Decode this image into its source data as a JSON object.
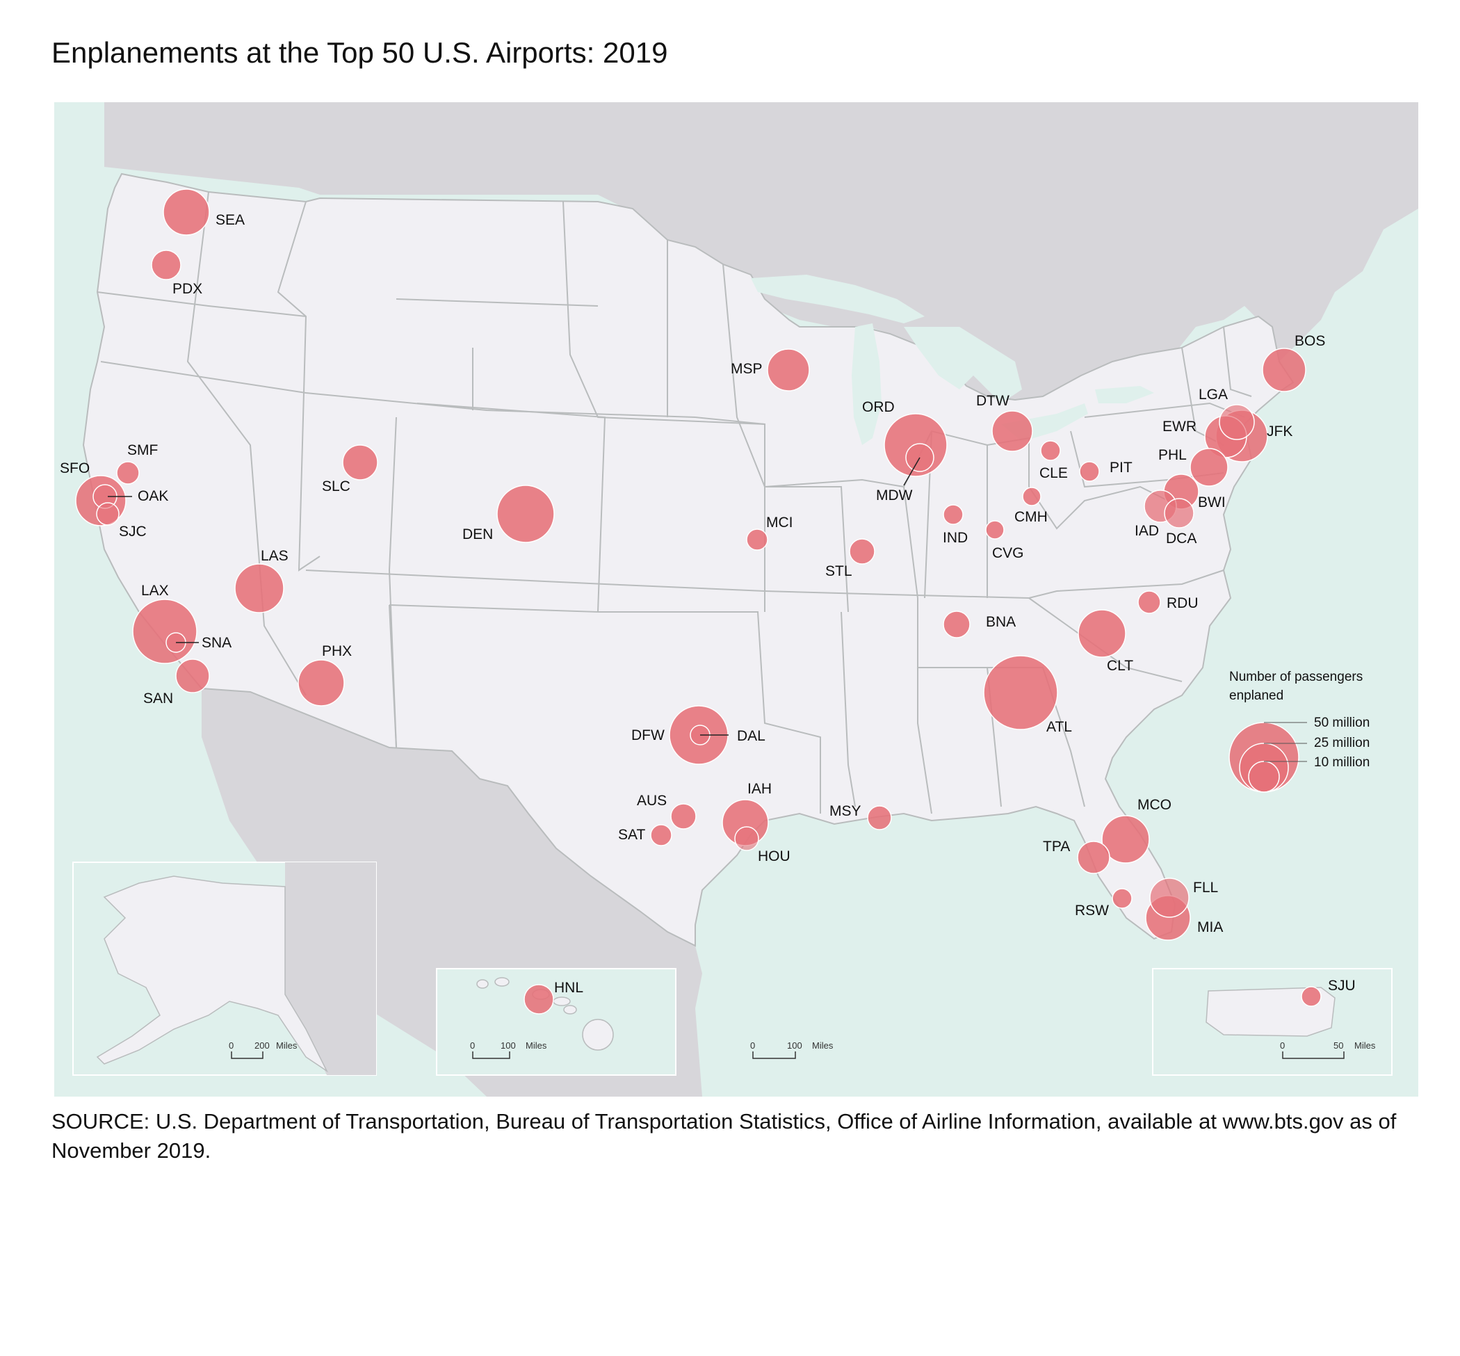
{
  "title": "Enplanements at the Top 50 U.S. Airports: 2019",
  "source": "SOURCE: U.S. Department of Transportation, Bureau of Transportation Statistics, Office of Airline Information, available at www.bts.gov as of November 2019.",
  "colors": {
    "water": "#dff0ec",
    "us_land": "#f1f0f4",
    "foreign_land": "#d7d6da",
    "borders": "#b9bcbd",
    "circle_fill": "#e67179",
    "circle_stroke": "#ffffff"
  },
  "legend": {
    "title_line1": "Number of passengers",
    "title_line2": "enplaned",
    "items": [
      {
        "label": "50 million"
      },
      {
        "label": "25 million"
      },
      {
        "label": "10 million"
      }
    ]
  },
  "scalebars": {
    "alaska": {
      "zero": "0",
      "value": "200",
      "unit": "Miles"
    },
    "hawaii": {
      "zero": "0",
      "value": "100",
      "unit": "Miles"
    },
    "mainland": {
      "zero": "0",
      "value": "100",
      "unit": "Miles"
    },
    "puerto_rico": {
      "zero": "0",
      "value": "50",
      "unit": "Miles"
    }
  },
  "airports": [
    {
      "code": "ATL"
    },
    {
      "code": "LAX"
    },
    {
      "code": "ORD"
    },
    {
      "code": "DFW"
    },
    {
      "code": "DEN"
    },
    {
      "code": "JFK"
    },
    {
      "code": "SFO"
    },
    {
      "code": "LAS"
    },
    {
      "code": "SEA"
    },
    {
      "code": "CLT"
    },
    {
      "code": "MCO"
    },
    {
      "code": "EWR"
    },
    {
      "code": "PHX"
    },
    {
      "code": "MIA"
    },
    {
      "code": "IAH"
    },
    {
      "code": "BOS"
    },
    {
      "code": "MSP"
    },
    {
      "code": "FLL"
    },
    {
      "code": "DTW"
    },
    {
      "code": "PHL"
    },
    {
      "code": "LGA"
    },
    {
      "code": "BWI"
    },
    {
      "code": "SLC"
    },
    {
      "code": "SAN"
    },
    {
      "code": "IAD"
    },
    {
      "code": "DCA"
    },
    {
      "code": "MDW"
    },
    {
      "code": "TPA"
    },
    {
      "code": "HNL"
    },
    {
      "code": "PDX"
    },
    {
      "code": "DAL"
    },
    {
      "code": "STL"
    },
    {
      "code": "BNA"
    },
    {
      "code": "AUS"
    },
    {
      "code": "HOU"
    },
    {
      "code": "OAK"
    },
    {
      "code": "MSY"
    },
    {
      "code": "RDU"
    },
    {
      "code": "SJC"
    },
    {
      "code": "SMF"
    },
    {
      "code": "SNA"
    },
    {
      "code": "MCI"
    },
    {
      "code": "SAT"
    },
    {
      "code": "RSW"
    },
    {
      "code": "CLE"
    },
    {
      "code": "IND"
    },
    {
      "code": "PIT"
    },
    {
      "code": "CMH"
    },
    {
      "code": "CVG"
    },
    {
      "code": "SJU"
    }
  ]
}
